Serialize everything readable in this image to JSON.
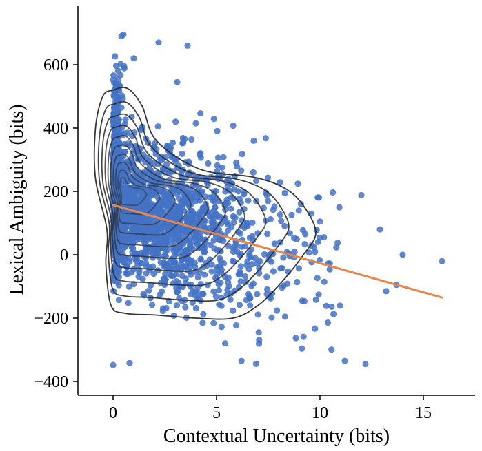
{
  "chart_data": {
    "type": "scatter",
    "xlabel": "Contextual Uncertainty (bits)",
    "ylabel": "Lexical Ambiguity (bits)",
    "xlim": [
      -1.7,
      17.5
    ],
    "ylim": [
      -440,
      785
    ],
    "x_ticks": [
      "0",
      "5",
      "10",
      "15"
    ],
    "y_ticks": [
      "−400",
      "−200",
      "0",
      "200",
      "400",
      "600"
    ],
    "grid": false,
    "legend": "none",
    "point_color": "#4472c4",
    "regression_color": "#e8854a",
    "contour_color": "#2b2b2b",
    "regression_line": {
      "x": [
        0,
        15.9
      ],
      "y": [
        157,
        -135
      ]
    },
    "density_center": {
      "x": 0.5,
      "y": 205
    },
    "notable_points": [
      {
        "x": 0.5,
        "y": 695
      },
      {
        "x": 0.4,
        "y": 690
      },
      {
        "x": 2.2,
        "y": 670
      },
      {
        "x": 3.6,
        "y": 660
      },
      {
        "x": 1.0,
        "y": 620
      },
      {
        "x": 3.1,
        "y": 545
      },
      {
        "x": 4.0,
        "y": 415
      },
      {
        "x": 6.8,
        "y": 360
      },
      {
        "x": 12.0,
        "y": 188
      },
      {
        "x": 12.9,
        "y": 80
      },
      {
        "x": 14.0,
        "y": 0
      },
      {
        "x": 15.9,
        "y": -20
      },
      {
        "x": 13.7,
        "y": -95
      },
      {
        "x": 13.2,
        "y": -115
      },
      {
        "x": 11.2,
        "y": -335
      },
      {
        "x": 12.2,
        "y": -345
      },
      {
        "x": 0.0,
        "y": -348
      },
      {
        "x": 0.8,
        "y": -342
      }
    ]
  }
}
